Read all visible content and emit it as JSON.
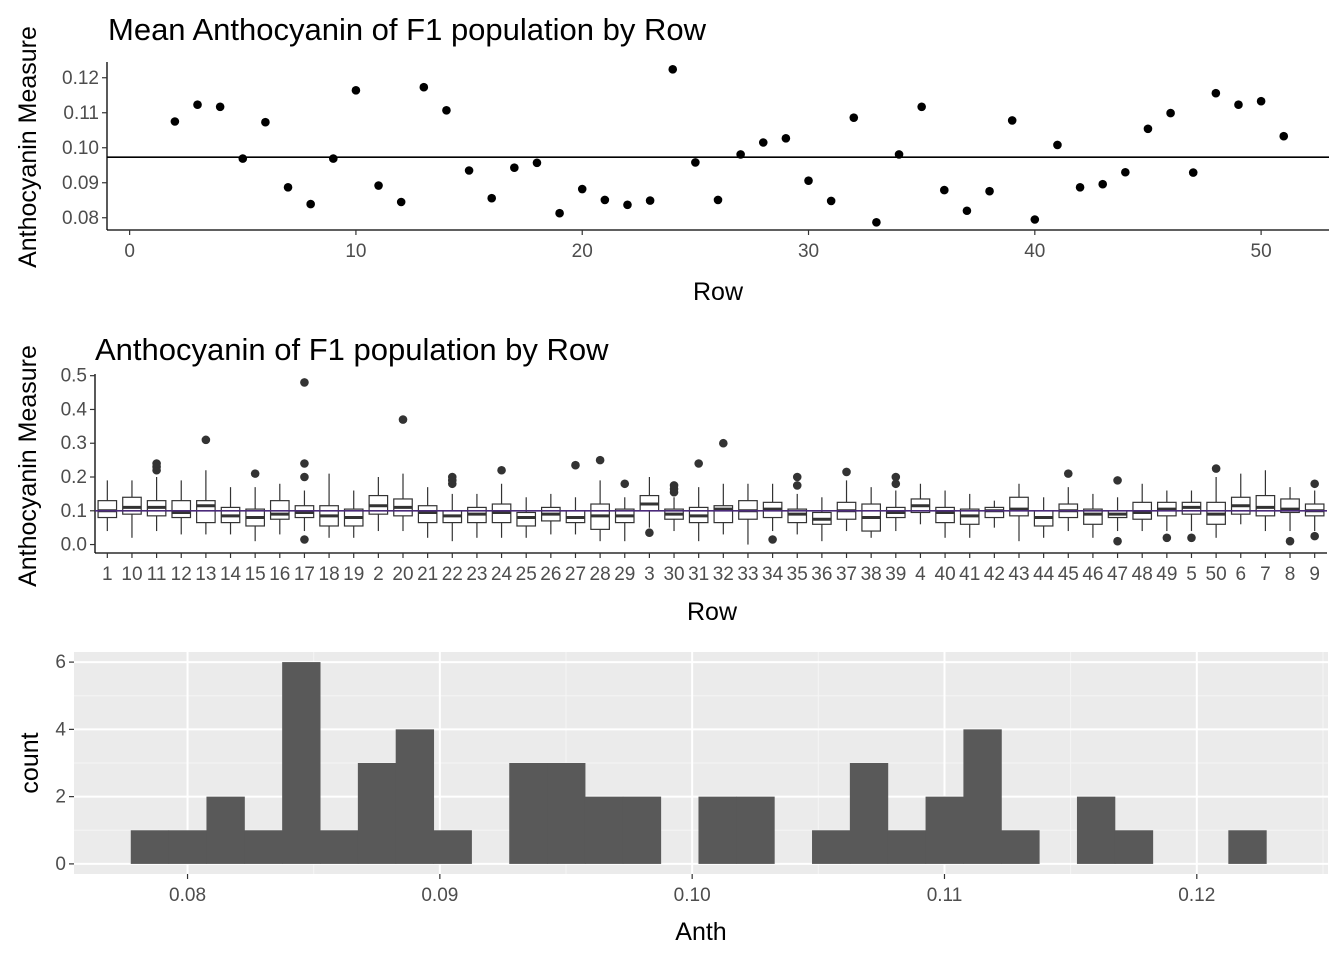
{
  "chart_data": [
    {
      "type": "scatter",
      "title": "Mean Anthocyanin of F1 population by Row",
      "xlabel": "Row",
      "ylabel": "Anthocyanin Measure",
      "xlim": [
        -1,
        53
      ],
      "ylim": [
        0.0765,
        0.1245
      ],
      "x_ticks": [
        "0",
        "10",
        "20",
        "30",
        "40",
        "50"
      ],
      "x_tick_values": [
        0,
        10,
        20,
        30,
        40,
        50
      ],
      "y_ticks": [
        "0.08",
        "0.09",
        "0.10",
        "0.11",
        "0.12"
      ],
      "y_tick_values": [
        0.08,
        0.09,
        0.1,
        0.11,
        0.12
      ],
      "hline": 0.0973,
      "grid": false,
      "x": [
        2,
        3,
        4,
        5,
        6,
        7,
        8,
        9,
        10,
        11,
        12,
        13,
        14,
        15,
        16,
        17,
        18,
        19,
        20,
        21,
        22,
        23,
        24,
        25,
        26,
        27,
        28,
        29,
        30,
        31,
        32,
        33,
        34,
        35,
        36,
        37,
        38,
        39,
        40,
        41,
        42,
        43,
        44,
        45,
        46,
        47,
        48,
        49,
        50,
        51
      ],
      "y": [
        0.1075,
        0.1123,
        0.1117,
        0.0969,
        0.1073,
        0.0887,
        0.0839,
        0.0969,
        0.1164,
        0.0892,
        0.0845,
        0.1173,
        0.1107,
        0.0935,
        0.0856,
        0.0943,
        0.0957,
        0.0813,
        0.0882,
        0.0851,
        0.0837,
        0.0849,
        0.1224,
        0.0958,
        0.0851,
        0.0981,
        0.1015,
        0.1027,
        0.0906,
        0.0848,
        0.1086,
        0.0787,
        0.0981,
        0.1117,
        0.0879,
        0.082,
        0.0876,
        0.1078,
        0.0795,
        0.1008,
        0.0887,
        0.0896,
        0.093,
        0.1054,
        0.1099,
        0.0929,
        0.1156,
        0.1123,
        0.1133,
        0.1033
      ]
    },
    {
      "type": "box",
      "title": "Anthocyanin of F1 population by Row",
      "xlabel": "Row",
      "ylabel": "Anthocyanin Measure",
      "ylim": [
        -0.025,
        0.505
      ],
      "y_ticks": [
        "0.0",
        "0.1",
        "0.2",
        "0.3",
        "0.4",
        "0.5"
      ],
      "y_tick_values": [
        0,
        0.1,
        0.2,
        0.3,
        0.4,
        0.5
      ],
      "hline": 0.1,
      "hline_color": "#4b2a7a",
      "grid": false,
      "categories": [
        "1",
        "10",
        "11",
        "12",
        "13",
        "14",
        "15",
        "16",
        "17",
        "18",
        "19",
        "2",
        "20",
        "21",
        "22",
        "23",
        "24",
        "25",
        "26",
        "27",
        "28",
        "29",
        "3",
        "30",
        "31",
        "32",
        "33",
        "34",
        "35",
        "36",
        "37",
        "38",
        "39",
        "4",
        "40",
        "41",
        "42",
        "43",
        "44",
        "45",
        "46",
        "47",
        "48",
        "49",
        "5",
        "50",
        "6",
        "7",
        "8",
        "9"
      ],
      "boxes": [
        {
          "q1": 0.08,
          "median": 0.1,
          "q3": 0.13,
          "lo": 0.04,
          "hi": 0.19,
          "out": []
        },
        {
          "q1": 0.09,
          "median": 0.11,
          "q3": 0.14,
          "lo": 0.02,
          "hi": 0.19,
          "out": []
        },
        {
          "q1": 0.085,
          "median": 0.11,
          "q3": 0.13,
          "lo": 0.04,
          "hi": 0.2,
          "out": [
            0.22,
            0.23,
            0.24
          ]
        },
        {
          "q1": 0.08,
          "median": 0.095,
          "q3": 0.13,
          "lo": 0.03,
          "hi": 0.19,
          "out": []
        },
        {
          "q1": 0.065,
          "median": 0.115,
          "q3": 0.13,
          "lo": 0.03,
          "hi": 0.22,
          "out": [
            0.31
          ]
        },
        {
          "q1": 0.065,
          "median": 0.085,
          "q3": 0.11,
          "lo": 0.03,
          "hi": 0.17,
          "out": []
        },
        {
          "q1": 0.055,
          "median": 0.08,
          "q3": 0.105,
          "lo": 0.01,
          "hi": 0.17,
          "out": [
            0.21
          ]
        },
        {
          "q1": 0.075,
          "median": 0.09,
          "q3": 0.13,
          "lo": 0.03,
          "hi": 0.18,
          "out": []
        },
        {
          "q1": 0.08,
          "median": 0.095,
          "q3": 0.115,
          "lo": 0.04,
          "hi": 0.16,
          "out": [
            0.48,
            0.24,
            0.2,
            0.015
          ]
        },
        {
          "q1": 0.055,
          "median": 0.085,
          "q3": 0.115,
          "lo": 0.02,
          "hi": 0.21,
          "out": []
        },
        {
          "q1": 0.055,
          "median": 0.08,
          "q3": 0.105,
          "lo": 0.02,
          "hi": 0.16,
          "out": []
        },
        {
          "q1": 0.09,
          "median": 0.115,
          "q3": 0.145,
          "lo": 0.04,
          "hi": 0.2,
          "out": []
        },
        {
          "q1": 0.085,
          "median": 0.11,
          "q3": 0.135,
          "lo": 0.04,
          "hi": 0.21,
          "out": [
            0.37
          ]
        },
        {
          "q1": 0.065,
          "median": 0.095,
          "q3": 0.115,
          "lo": 0.02,
          "hi": 0.17,
          "out": []
        },
        {
          "q1": 0.065,
          "median": 0.085,
          "q3": 0.1,
          "lo": 0.01,
          "hi": 0.15,
          "out": [
            0.18,
            0.19,
            0.2
          ]
        },
        {
          "q1": 0.065,
          "median": 0.09,
          "q3": 0.11,
          "lo": 0.02,
          "hi": 0.15,
          "out": []
        },
        {
          "q1": 0.065,
          "median": 0.095,
          "q3": 0.12,
          "lo": 0.02,
          "hi": 0.18,
          "out": [
            0.22
          ]
        },
        {
          "q1": 0.055,
          "median": 0.08,
          "q3": 0.095,
          "lo": 0.02,
          "hi": 0.14,
          "out": []
        },
        {
          "q1": 0.07,
          "median": 0.09,
          "q3": 0.11,
          "lo": 0.03,
          "hi": 0.15,
          "out": []
        },
        {
          "q1": 0.065,
          "median": 0.08,
          "q3": 0.1,
          "lo": 0.03,
          "hi": 0.14,
          "out": [
            0.235
          ]
        },
        {
          "q1": 0.045,
          "median": 0.085,
          "q3": 0.12,
          "lo": 0.01,
          "hi": 0.19,
          "out": [
            0.25
          ]
        },
        {
          "q1": 0.065,
          "median": 0.085,
          "q3": 0.105,
          "lo": 0.01,
          "hi": 0.14,
          "out": [
            0.18
          ]
        },
        {
          "q1": 0.1,
          "median": 0.12,
          "q3": 0.145,
          "lo": 0.05,
          "hi": 0.2,
          "out": [
            0.035
          ]
        },
        {
          "q1": 0.075,
          "median": 0.09,
          "q3": 0.105,
          "lo": 0.04,
          "hi": 0.14,
          "out": [
            0.155,
            0.165,
            0.175
          ]
        },
        {
          "q1": 0.065,
          "median": 0.085,
          "q3": 0.11,
          "lo": 0.01,
          "hi": 0.17,
          "out": [
            0.24
          ]
        },
        {
          "q1": 0.065,
          "median": 0.105,
          "q3": 0.115,
          "lo": 0.03,
          "hi": 0.18,
          "out": [
            0.3
          ]
        },
        {
          "q1": 0.075,
          "median": 0.1,
          "q3": 0.13,
          "lo": 0.0,
          "hi": 0.18,
          "out": []
        },
        {
          "q1": 0.08,
          "median": 0.105,
          "q3": 0.125,
          "lo": 0.04,
          "hi": 0.18,
          "out": [
            0.015
          ]
        },
        {
          "q1": 0.065,
          "median": 0.09,
          "q3": 0.105,
          "lo": 0.03,
          "hi": 0.15,
          "out": [
            0.175,
            0.2
          ]
        },
        {
          "q1": 0.06,
          "median": 0.075,
          "q3": 0.095,
          "lo": 0.01,
          "hi": 0.14,
          "out": []
        },
        {
          "q1": 0.075,
          "median": 0.1,
          "q3": 0.125,
          "lo": 0.04,
          "hi": 0.19,
          "out": [
            0.215
          ]
        },
        {
          "q1": 0.04,
          "median": 0.08,
          "q3": 0.12,
          "lo": 0.02,
          "hi": 0.17,
          "out": []
        },
        {
          "q1": 0.08,
          "median": 0.095,
          "q3": 0.11,
          "lo": 0.04,
          "hi": 0.16,
          "out": [
            0.18,
            0.2
          ]
        },
        {
          "q1": 0.095,
          "median": 0.115,
          "q3": 0.135,
          "lo": 0.06,
          "hi": 0.18,
          "out": []
        },
        {
          "q1": 0.065,
          "median": 0.095,
          "q3": 0.11,
          "lo": 0.02,
          "hi": 0.16,
          "out": []
        },
        {
          "q1": 0.06,
          "median": 0.085,
          "q3": 0.105,
          "lo": 0.02,
          "hi": 0.15,
          "out": []
        },
        {
          "q1": 0.08,
          "median": 0.1,
          "q3": 0.11,
          "lo": 0.05,
          "hi": 0.13,
          "out": []
        },
        {
          "q1": 0.085,
          "median": 0.105,
          "q3": 0.14,
          "lo": 0.01,
          "hi": 0.18,
          "out": []
        },
        {
          "q1": 0.055,
          "median": 0.08,
          "q3": 0.1,
          "lo": 0.02,
          "hi": 0.14,
          "out": []
        },
        {
          "q1": 0.08,
          "median": 0.1,
          "q3": 0.12,
          "lo": 0.04,
          "hi": 0.17,
          "out": [
            0.21
          ]
        },
        {
          "q1": 0.06,
          "median": 0.09,
          "q3": 0.105,
          "lo": 0.02,
          "hi": 0.15,
          "out": []
        },
        {
          "q1": 0.08,
          "median": 0.09,
          "q3": 0.1,
          "lo": 0.04,
          "hi": 0.14,
          "out": [
            0.19,
            0.01
          ]
        },
        {
          "q1": 0.075,
          "median": 0.095,
          "q3": 0.125,
          "lo": 0.04,
          "hi": 0.18,
          "out": []
        },
        {
          "q1": 0.085,
          "median": 0.105,
          "q3": 0.125,
          "lo": 0.04,
          "hi": 0.16,
          "out": [
            0.02
          ]
        },
        {
          "q1": 0.09,
          "median": 0.11,
          "q3": 0.125,
          "lo": 0.04,
          "hi": 0.16,
          "out": [
            0.02
          ]
        },
        {
          "q1": 0.06,
          "median": 0.09,
          "q3": 0.125,
          "lo": 0.02,
          "hi": 0.2,
          "out": [
            0.225
          ]
        },
        {
          "q1": 0.09,
          "median": 0.115,
          "q3": 0.14,
          "lo": 0.06,
          "hi": 0.21,
          "out": []
        },
        {
          "q1": 0.085,
          "median": 0.11,
          "q3": 0.145,
          "lo": 0.04,
          "hi": 0.22,
          "out": []
        },
        {
          "q1": 0.095,
          "median": 0.105,
          "q3": 0.135,
          "lo": 0.04,
          "hi": 0.17,
          "out": [
            0.01
          ]
        },
        {
          "q1": 0.085,
          "median": 0.1,
          "q3": 0.12,
          "lo": 0.04,
          "hi": 0.16,
          "out": [
            0.18,
            0.025
          ]
        }
      ]
    },
    {
      "type": "bar",
      "subtype": "histogram",
      "xlabel": "Anth",
      "ylabel": "count",
      "xlim": [
        0.0755,
        0.1252
      ],
      "ylim": [
        -0.3,
        6.3
      ],
      "x_ticks": [
        "0.08",
        "0.09",
        "0.10",
        "0.11",
        "0.12"
      ],
      "x_tick_values": [
        0.08,
        0.09,
        0.1,
        0.11,
        0.12
      ],
      "y_ticks": [
        "0",
        "2",
        "4",
        "6"
      ],
      "y_tick_values": [
        0,
        2,
        4,
        6
      ],
      "grid": true,
      "bin_edges_start": 0.07775,
      "bin_width": 0.0015,
      "counts": [
        1,
        1,
        2,
        1,
        6,
        1,
        3,
        4,
        1,
        0,
        3,
        3,
        2,
        2,
        0,
        2,
        2,
        0,
        1,
        3,
        1,
        2,
        4,
        1,
        0,
        2,
        1,
        0,
        0,
        1
      ]
    }
  ]
}
